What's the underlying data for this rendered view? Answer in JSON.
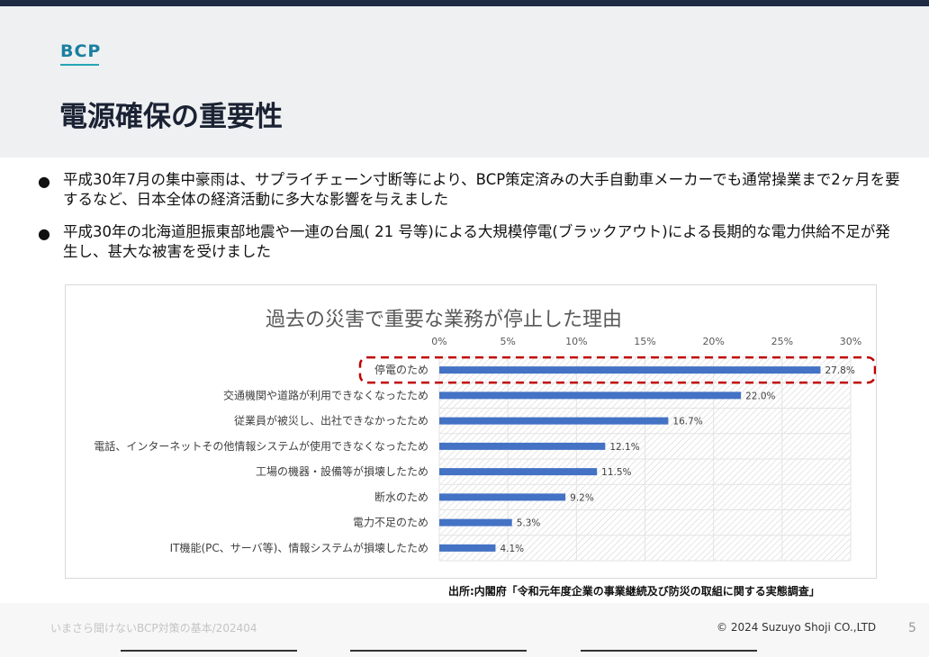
{
  "header": {
    "section_label": "BCP",
    "title": "電源確保の重要性"
  },
  "bullets": [
    "平成30年7月の集中豪雨は、サプライチェーン寸断等により、BCP策定済みの大手自動車メーカーでも通常操業まで2ヶ月を要するなど、日本全体の経済活動に多大な影響を与えました",
    "平成30年の北海道胆振東部地震や一連の台風( 21 号等)による大規模停電(ブラックアウト)による長期的な電力供給不足が発生し、甚大な被害を受けました"
  ],
  "bullet_glyph": "●",
  "chart_data": {
    "type": "bar",
    "orientation": "horizontal",
    "title": "過去の災害で重要な業務が停止した理由",
    "categories": [
      "停電のため",
      "交通機関や道路が利用できなくなったため",
      "従業員が被災し、出社できなかったため",
      "電話、インターネットその他情報システムが使用できなくなったため",
      "工場の機器・設備等が損壊したため",
      "断水のため",
      "電力不足のため",
      "IT機能(PC、サーバ等)、情報システムが損壊したため"
    ],
    "values": [
      27.8,
      22.0,
      16.7,
      12.1,
      11.5,
      9.2,
      5.3,
      4.1
    ],
    "value_labels": [
      "27.8%",
      "22.0%",
      "16.7%",
      "12.1%",
      "11.5%",
      "9.2%",
      "5.3%",
      "4.1%"
    ],
    "x_ticks": [
      "0%",
      "5%",
      "10%",
      "15%",
      "20%",
      "25%",
      "30%"
    ],
    "xlim": [
      0,
      30
    ],
    "x_axis_position": "top",
    "grid": true,
    "highlighted_category": "停電のため",
    "highlight_color": "#c00000",
    "bar_color": "#4472c4"
  },
  "source_note": "出所:内閣府「令和元年度企業の事業継続及び防災の取組に関する実態調査」",
  "footer": {
    "left": "いまさら聞けないBCP対策の基本/202404",
    "right": "© 2024 Suzuyo Shoji CO.,LTD",
    "page_number": "5"
  }
}
